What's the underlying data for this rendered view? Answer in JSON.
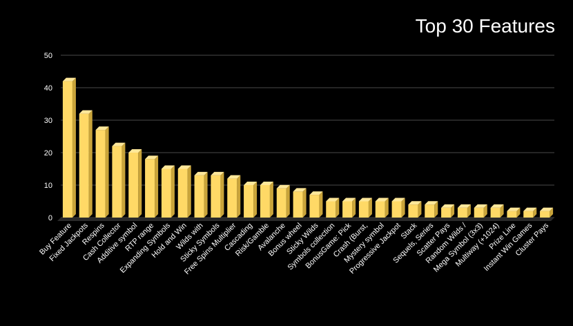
{
  "chart_data": {
    "type": "bar",
    "title": "Top 30 Features",
    "xlabel": "",
    "ylabel": "",
    "ylim": [
      0,
      50
    ],
    "yticks": [
      0,
      10,
      20,
      30,
      40,
      50
    ],
    "grid": true,
    "legend": "none",
    "categories": [
      "Buy Feature",
      "Fixed Jackpots",
      "Respins",
      "Cash Collector",
      "Additive symbol",
      "RTP range",
      "Expanding Symbols",
      "Hold and Win",
      "Wilds with",
      "Sticky Symbols",
      "Free Spins Multiplier",
      "Cascading",
      "Risk/Gamble",
      "Avalanche",
      "Bonus wheel",
      "Sticky Wilds",
      "Symbols collection",
      "BonusGame: Pick",
      "Crash (Burst,",
      "Mystery symbol",
      "Progressive Jackpot",
      "Stack",
      "Sequels, Series",
      "Scatter Pays",
      "Random Wilds /",
      "Mega Symbol (3x3)",
      "Multiway (+1024)",
      "Prize Line",
      "Instant Win Games",
      "Cluster Pays"
    ],
    "values": [
      42,
      32,
      27,
      22,
      20,
      18,
      15,
      15,
      13,
      13,
      12,
      10,
      10,
      9,
      8,
      7,
      5,
      5,
      5,
      5,
      5,
      4,
      4,
      3,
      3,
      3,
      3,
      2,
      2,
      2
    ]
  },
  "colors": {
    "background": "#000000",
    "bar_front": "#FFD966",
    "bar_side": "#C9A43A",
    "bar_top": "#FFE89A",
    "grid": "#4a4a4a",
    "text": "#ffffff"
  }
}
